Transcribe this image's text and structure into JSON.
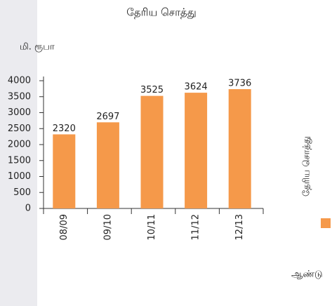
{
  "chart_data": {
    "type": "bar",
    "title": "தேரிய சொத்து",
    "y_label": "மி. ரூபா",
    "x_label": "ஆண்டு",
    "categories": [
      "08/09",
      "09/10",
      "10/11",
      "11/12",
      "12/13"
    ],
    "series": [
      {
        "name": "தேரிய சொத்து",
        "color": "#f5994a",
        "values": [
          2320,
          2697,
          3525,
          3624,
          3736
        ]
      }
    ],
    "ylim": [
      0,
      4000
    ],
    "yticks": [
      0,
      500,
      1000,
      1500,
      2000,
      2500,
      3000,
      3500,
      4000
    ],
    "grid": false,
    "legend": "right"
  }
}
